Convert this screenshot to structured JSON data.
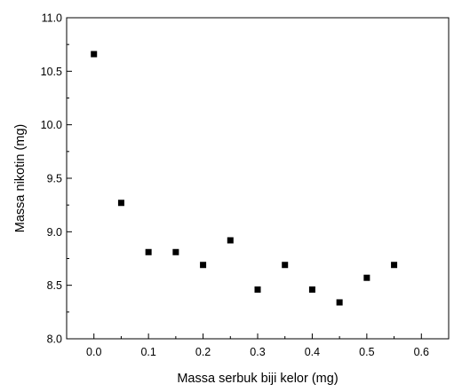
{
  "chart_data": {
    "type": "scatter",
    "title": "",
    "xlabel": "Massa serbuk biji kelor (mg)",
    "ylabel": "Massa nikotin (mg)",
    "xlim": [
      -0.05,
      0.65
    ],
    "ylim": [
      8.0,
      11.0
    ],
    "xticks": [
      "0.0",
      "0.1",
      "0.2",
      "0.3",
      "0.4",
      "0.5",
      "0.6"
    ],
    "yticks": [
      "8.0",
      "8.5",
      "9.0",
      "9.5",
      "10.0",
      "10.5",
      "11.0"
    ],
    "grid": false,
    "legend": "none",
    "marker": "square",
    "marker_color": "#000000",
    "series": [
      {
        "x": [
          0.0,
          0.05,
          0.1,
          0.15,
          0.2,
          0.25,
          0.3,
          0.35,
          0.4,
          0.45,
          0.5,
          0.55
        ],
        "y": [
          10.66,
          9.27,
          8.81,
          8.81,
          8.69,
          8.92,
          8.46,
          8.69,
          8.46,
          8.34,
          8.57,
          8.69
        ]
      }
    ]
  }
}
